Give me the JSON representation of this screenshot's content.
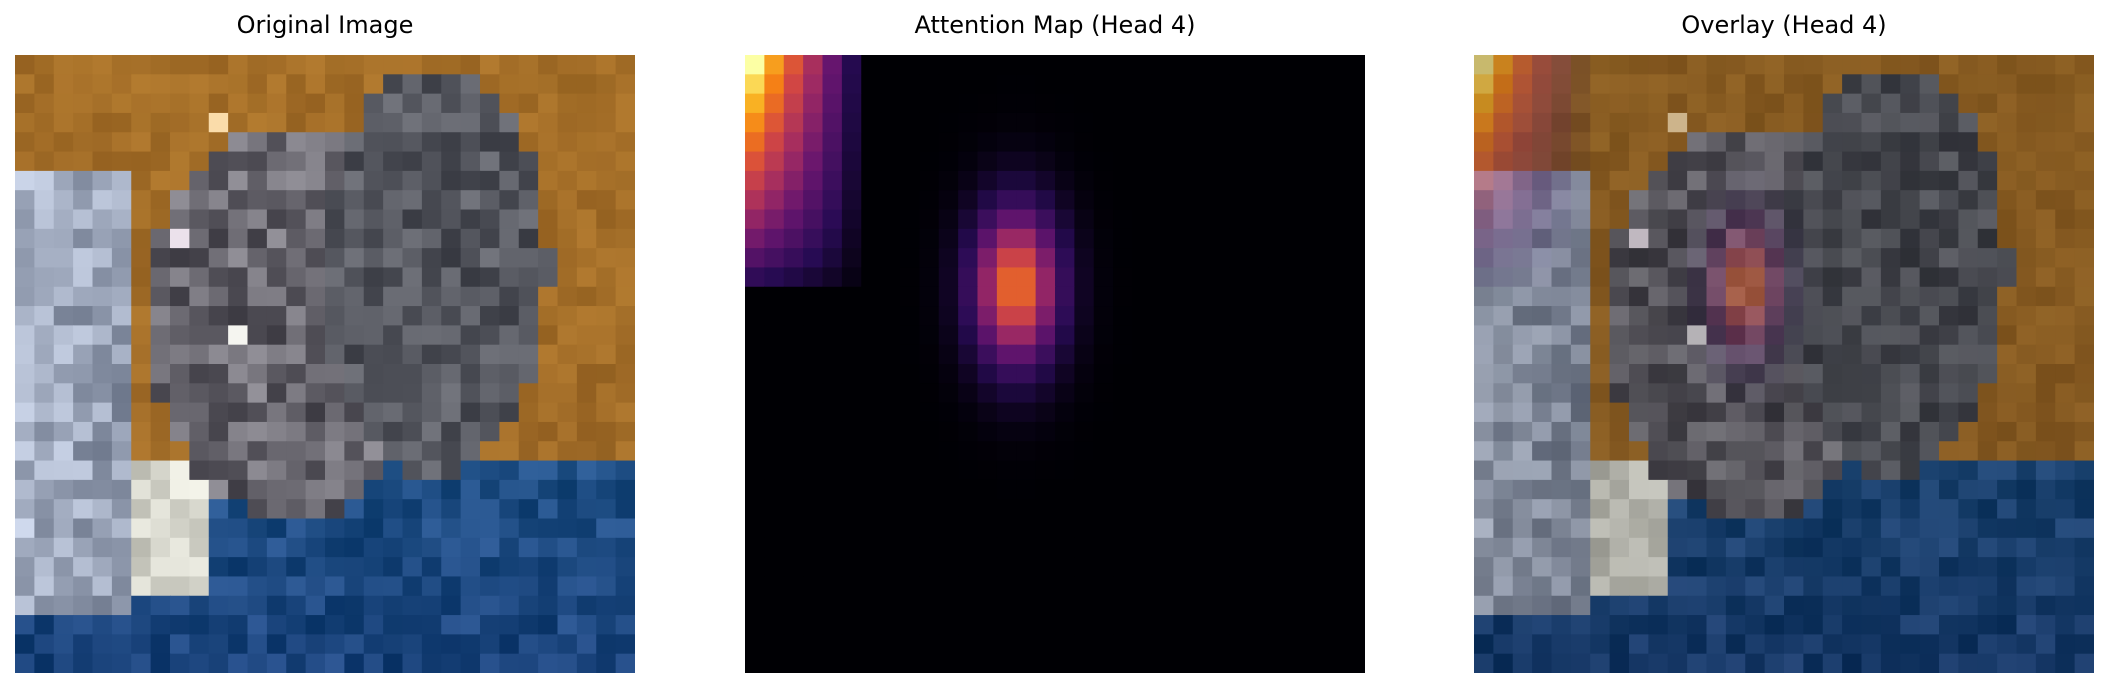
{
  "panels": [
    {
      "title": "Original Image",
      "kind": "original"
    },
    {
      "title": "Attention Map (Head 4)",
      "kind": "attention"
    },
    {
      "title": "Overlay (Head 4)",
      "kind": "overlay"
    }
  ],
  "colors": {
    "background_top": "#a56f28",
    "background_bottom": "#1f4f85",
    "attention_low": "#000004",
    "attention_mid": "#7a1b6d",
    "attention_high": "#fcffa4"
  },
  "attention": {
    "colormap": "inferno",
    "corner_peak": 1.0,
    "center_peak": 0.8
  }
}
